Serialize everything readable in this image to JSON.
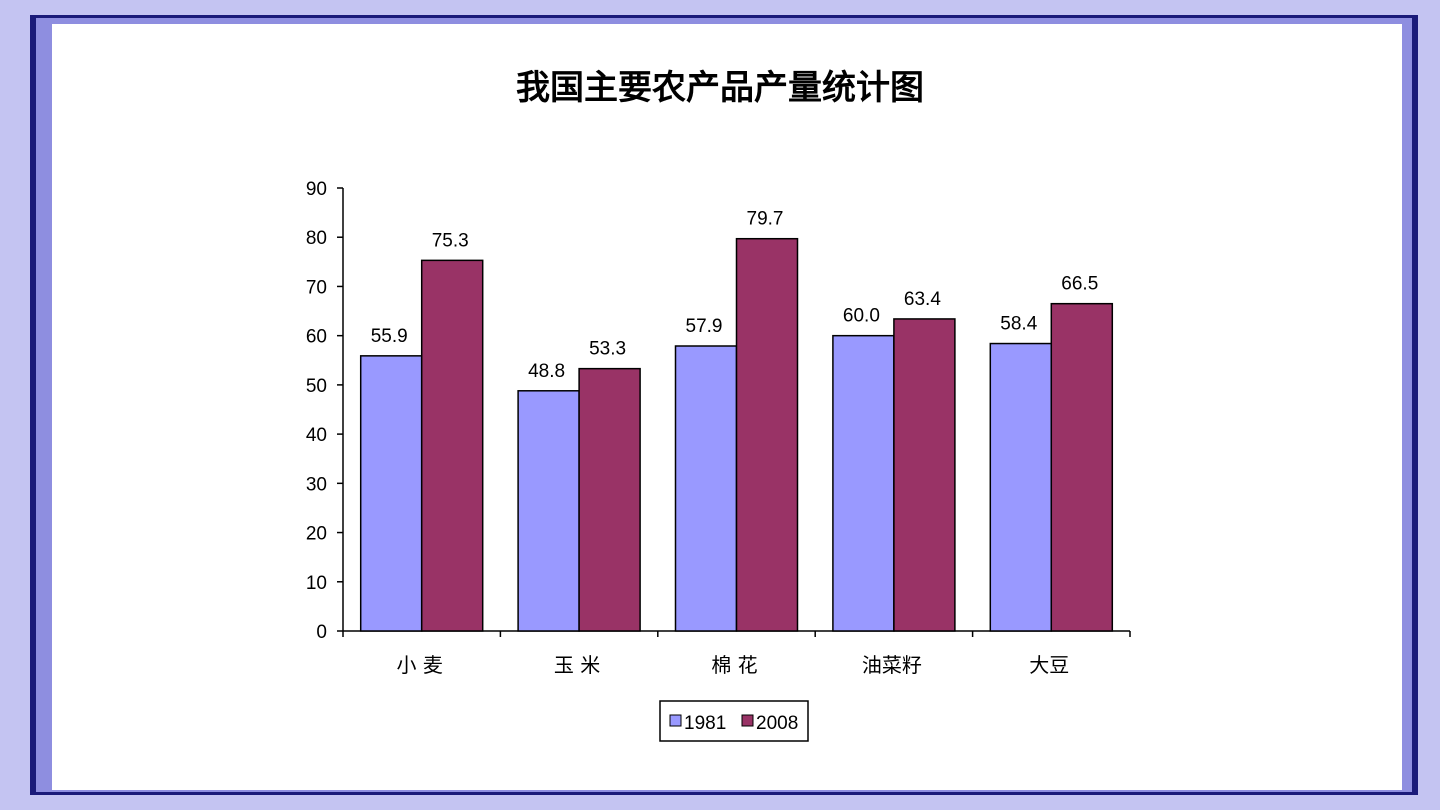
{
  "chart_data": {
    "type": "bar",
    "title": "我国主要农产品产量统计图",
    "categories": [
      "小 麦",
      "玉 米",
      "棉 花",
      "油菜籽",
      "大豆"
    ],
    "series": [
      {
        "name": "1981",
        "values": [
          55.9,
          48.8,
          57.9,
          60.0,
          58.4
        ],
        "labels": [
          "55.9",
          "48.8",
          "57.9",
          "60.0",
          "58.4"
        ],
        "color": "#9999ff"
      },
      {
        "name": "2008",
        "values": [
          75.3,
          53.3,
          79.7,
          63.4,
          66.5
        ],
        "labels": [
          "75.3",
          "53.3",
          "79.7",
          "63.4",
          "66.5"
        ],
        "color": "#993366"
      }
    ],
    "ylim": [
      0,
      90
    ],
    "yticks": [
      "0",
      "10",
      "20",
      "30",
      "40",
      "50",
      "60",
      "70",
      "80",
      "90"
    ],
    "xlabel": "",
    "ylabel": "",
    "legend": "bottom",
    "grid": false
  }
}
